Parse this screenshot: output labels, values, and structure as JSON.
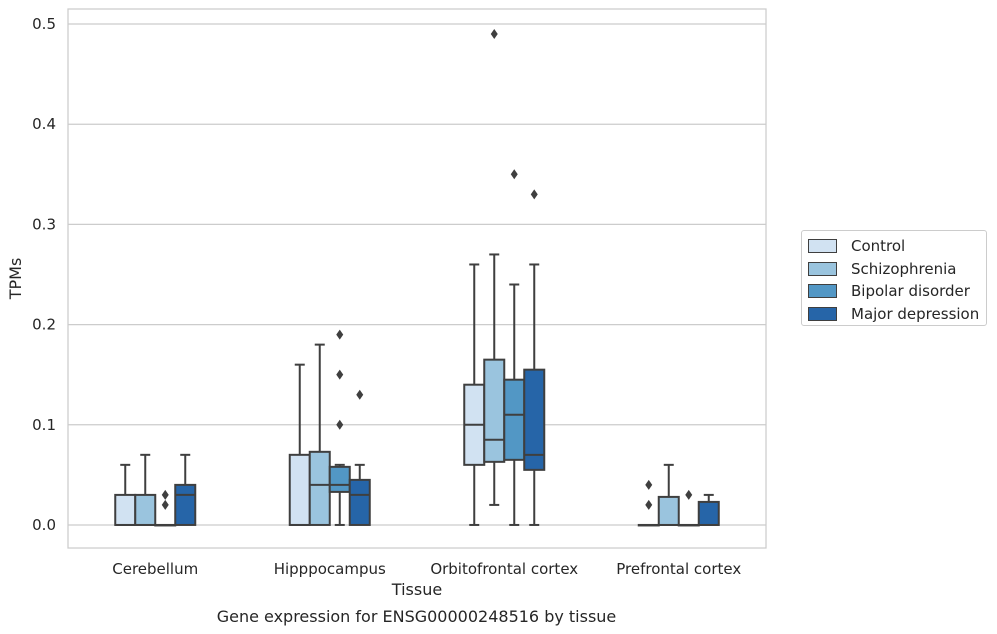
{
  "caption": "Gene expression for ENSG00000248516 by tissue",
  "chart_data": {
    "type": "box",
    "xlabel": "Tissue",
    "ylabel": "TPMs",
    "ylim": [
      -0.023,
      0.515
    ],
    "yticks": [
      0.0,
      0.1,
      0.2,
      0.3,
      0.4,
      0.5
    ],
    "ytick_labels": [
      "0.0",
      "0.1",
      "0.2",
      "0.3",
      "0.4",
      "0.5"
    ],
    "grid": "horizontal",
    "legend_position": "right",
    "categories": [
      "Cerebellum",
      "Hipppocampus",
      "Orbitofrontal cortex",
      "Prefrontal cortex"
    ],
    "series": [
      {
        "name": "Control",
        "color": "#d1e2f2",
        "boxes": [
          {
            "q1": 0.0,
            "median": 0.0,
            "q3": 0.03,
            "whisker_low": 0.0,
            "whisker_high": 0.06,
            "outliers": []
          },
          {
            "q1": 0.0,
            "median": 0.0,
            "q3": 0.07,
            "whisker_low": 0.0,
            "whisker_high": 0.16,
            "outliers": []
          },
          {
            "q1": 0.06,
            "median": 0.1,
            "q3": 0.14,
            "whisker_low": 0.0,
            "whisker_high": 0.26,
            "outliers": []
          },
          {
            "q1": 0.0,
            "median": 0.0,
            "q3": 0.0,
            "whisker_low": 0.0,
            "whisker_high": 0.0,
            "outliers": [
              0.02,
              0.04
            ]
          }
        ]
      },
      {
        "name": "Schizophrenia",
        "color": "#9ac4de",
        "boxes": [
          {
            "q1": 0.0,
            "median": 0.0,
            "q3": 0.03,
            "whisker_low": 0.0,
            "whisker_high": 0.07,
            "outliers": []
          },
          {
            "q1": 0.0,
            "median": 0.04,
            "q3": 0.073,
            "whisker_low": 0.0,
            "whisker_high": 0.18,
            "outliers": []
          },
          {
            "q1": 0.063,
            "median": 0.085,
            "q3": 0.165,
            "whisker_low": 0.02,
            "whisker_high": 0.27,
            "outliers": [
              0.49
            ]
          },
          {
            "q1": 0.0,
            "median": 0.0,
            "q3": 0.028,
            "whisker_low": 0.0,
            "whisker_high": 0.06,
            "outliers": []
          }
        ]
      },
      {
        "name": "Bipolar disorder",
        "color": "#5297c5",
        "boxes": [
          {
            "q1": 0.0,
            "median": 0.0,
            "q3": 0.0,
            "whisker_low": 0.0,
            "whisker_high": 0.0,
            "outliers": [
              0.02,
              0.03
            ]
          },
          {
            "q1": 0.033,
            "median": 0.04,
            "q3": 0.058,
            "whisker_low": 0.0,
            "whisker_high": 0.06,
            "outliers": [
              0.1,
              0.15,
              0.19
            ]
          },
          {
            "q1": 0.065,
            "median": 0.11,
            "q3": 0.145,
            "whisker_low": 0.0,
            "whisker_high": 0.24,
            "outliers": [
              0.35
            ]
          },
          {
            "q1": 0.0,
            "median": 0.0,
            "q3": 0.0,
            "whisker_low": 0.0,
            "whisker_high": 0.0,
            "outliers": [
              0.03
            ]
          }
        ]
      },
      {
        "name": "Major depression",
        "color": "#2665a8",
        "boxes": [
          {
            "q1": 0.0,
            "median": 0.03,
            "q3": 0.04,
            "whisker_low": 0.0,
            "whisker_high": 0.07,
            "outliers": []
          },
          {
            "q1": 0.0,
            "median": 0.03,
            "q3": 0.045,
            "whisker_low": 0.0,
            "whisker_high": 0.06,
            "outliers": [
              0.13
            ]
          },
          {
            "q1": 0.055,
            "median": 0.07,
            "q3": 0.155,
            "whisker_low": 0.0,
            "whisker_high": 0.26,
            "outliers": [
              0.33
            ]
          },
          {
            "q1": 0.0,
            "median": 0.0,
            "q3": 0.023,
            "whisker_low": 0.0,
            "whisker_high": 0.03,
            "outliers": []
          }
        ]
      }
    ]
  }
}
